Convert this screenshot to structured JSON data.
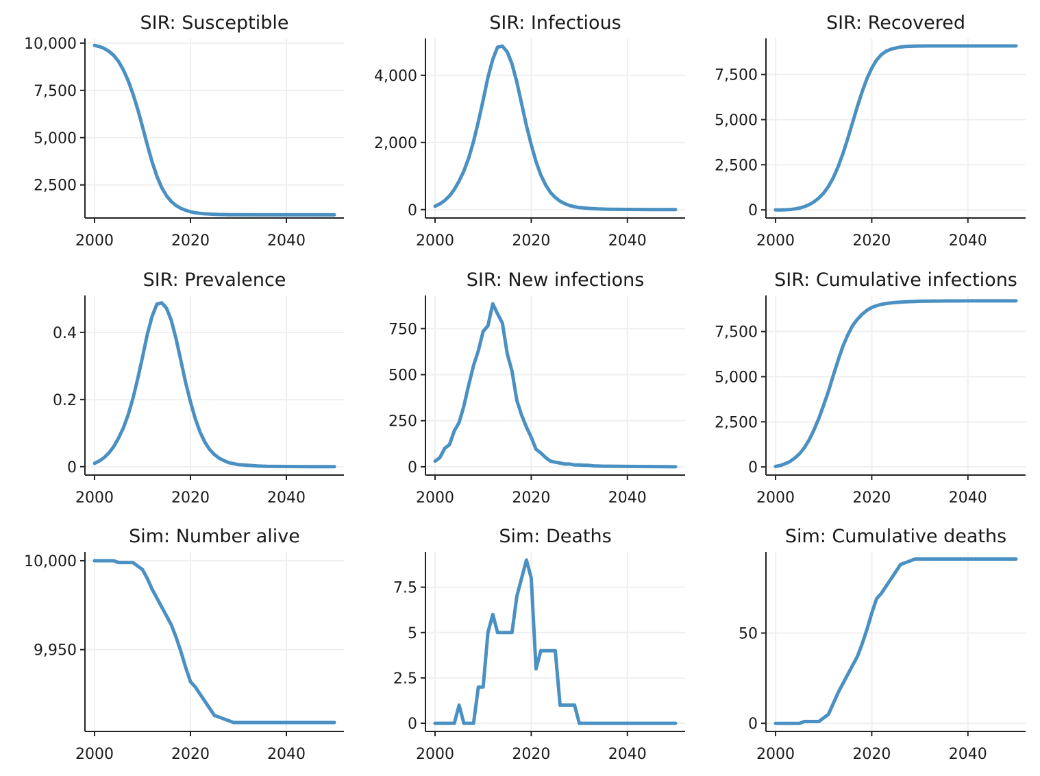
{
  "colors": {
    "series": "#4a90c2",
    "grid": "#efefef",
    "axis": "#222222"
  },
  "chart_data": [
    {
      "type": "line",
      "title": "SIR: Susceptible",
      "xlim": [
        1998,
        2052
      ],
      "ylim": [
        750,
        10250
      ],
      "xticks": [
        2000,
        2020,
        2040
      ],
      "xtick_labels": [
        "2000",
        "2020",
        "2040"
      ],
      "yticks": [
        2500,
        5000,
        7500,
        10000
      ],
      "ytick_labels": [
        "2,500",
        "5,000",
        "7,500",
        "10,000"
      ],
      "grid": true,
      "x": [
        2000,
        2001,
        2002,
        2003,
        2004,
        2005,
        2006,
        2007,
        2008,
        2009,
        2010,
        2011,
        2012,
        2013,
        2014,
        2015,
        2016,
        2017,
        2018,
        2019,
        2020,
        2021,
        2022,
        2023,
        2024,
        2025,
        2026,
        2027,
        2028,
        2029,
        2030,
        2035,
        2040,
        2045,
        2050
      ],
      "y": [
        9880,
        9820,
        9720,
        9570,
        9350,
        9030,
        8590,
        8020,
        7320,
        6500,
        5580,
        4620,
        3720,
        2960,
        2360,
        1930,
        1620,
        1410,
        1260,
        1160,
        1080,
        1030,
        995,
        970,
        955,
        945,
        935,
        930,
        925,
        922,
        920,
        917,
        915,
        915,
        915
      ]
    },
    {
      "type": "line",
      "title": "SIR: Infectious",
      "xlim": [
        1998,
        2052
      ],
      "ylim": [
        -250,
        5100
      ],
      "xticks": [
        2000,
        2020,
        2040
      ],
      "xtick_labels": [
        "2000",
        "2020",
        "2040"
      ],
      "yticks": [
        0,
        2000,
        4000
      ],
      "ytick_labels": [
        "0",
        "2,000",
        "4,000"
      ],
      "grid": true,
      "x": [
        2000,
        2001,
        2002,
        2003,
        2004,
        2005,
        2006,
        2007,
        2008,
        2009,
        2010,
        2011,
        2012,
        2013,
        2014,
        2015,
        2016,
        2017,
        2018,
        2019,
        2020,
        2021,
        2022,
        2023,
        2024,
        2025,
        2026,
        2027,
        2028,
        2029,
        2030,
        2032,
        2034,
        2036,
        2040,
        2045,
        2050
      ],
      "y": [
        100,
        170,
        270,
        410,
        600,
        850,
        1150,
        1540,
        2030,
        2620,
        3260,
        3940,
        4480,
        4840,
        4870,
        4700,
        4340,
        3800,
        3150,
        2500,
        1930,
        1430,
        1030,
        730,
        510,
        360,
        250,
        175,
        120,
        85,
        60,
        35,
        20,
        12,
        5,
        2,
        0
      ]
    },
    {
      "type": "line",
      "title": "SIR: Recovered",
      "xlim": [
        1998,
        2052
      ],
      "ylim": [
        -450,
        9500
      ],
      "xticks": [
        2000,
        2020,
        2040
      ],
      "xtick_labels": [
        "2000",
        "2020",
        "2040"
      ],
      "yticks": [
        0,
        2500,
        5000,
        7500
      ],
      "ytick_labels": [
        "0",
        "2,500",
        "5,000",
        "7,500"
      ],
      "grid": true,
      "x": [
        2000,
        2001,
        2002,
        2003,
        2004,
        2005,
        2006,
        2007,
        2008,
        2009,
        2010,
        2011,
        2012,
        2013,
        2014,
        2015,
        2016,
        2017,
        2018,
        2019,
        2020,
        2021,
        2022,
        2023,
        2024,
        2025,
        2026,
        2027,
        2028,
        2029,
        2030,
        2032,
        2034,
        2036,
        2040,
        2045,
        2050
      ],
      "y": [
        0,
        0,
        5,
        20,
        50,
        100,
        180,
        290,
        450,
        660,
        930,
        1300,
        1780,
        2390,
        3110,
        3940,
        4820,
        5720,
        6550,
        7270,
        7850,
        8300,
        8600,
        8790,
        8900,
        8970,
        9020,
        9050,
        9065,
        9075,
        9080,
        9082,
        9083,
        9083,
        9083,
        9083,
        9083
      ]
    },
    {
      "type": "line",
      "title": "SIR: Prevalence",
      "xlim": [
        1998,
        2052
      ],
      "ylim": [
        -0.025,
        0.51
      ],
      "xticks": [
        2000,
        2020,
        2040
      ],
      "xtick_labels": [
        "2000",
        "2020",
        "2040"
      ],
      "yticks": [
        0,
        0.2,
        0.4
      ],
      "ytick_labels": [
        "0",
        "0.2",
        "0.4"
      ],
      "grid": true,
      "x": [
        2000,
        2001,
        2002,
        2003,
        2004,
        2005,
        2006,
        2007,
        2008,
        2009,
        2010,
        2011,
        2012,
        2013,
        2014,
        2015,
        2016,
        2017,
        2018,
        2019,
        2020,
        2021,
        2022,
        2023,
        2024,
        2025,
        2026,
        2027,
        2028,
        2029,
        2030,
        2032,
        2034,
        2036,
        2040,
        2045,
        2050
      ],
      "y": [
        0.01,
        0.017,
        0.027,
        0.041,
        0.06,
        0.085,
        0.115,
        0.154,
        0.203,
        0.262,
        0.326,
        0.394,
        0.448,
        0.484,
        0.488,
        0.472,
        0.436,
        0.381,
        0.316,
        0.25,
        0.193,
        0.143,
        0.103,
        0.073,
        0.051,
        0.036,
        0.025,
        0.018,
        0.012,
        0.009,
        0.006,
        0.004,
        0.002,
        0.001,
        0.0005,
        0.0002,
        0
      ]
    },
    {
      "type": "line",
      "title": "SIR: New infections",
      "xlim": [
        1998,
        2052
      ],
      "ylim": [
        -45,
        930
      ],
      "xticks": [
        2000,
        2020,
        2040
      ],
      "xtick_labels": [
        "2000",
        "2020",
        "2040"
      ],
      "yticks": [
        0,
        250,
        500,
        750
      ],
      "ytick_labels": [
        "0",
        "250",
        "500",
        "750"
      ],
      "grid": true,
      "x": [
        2000,
        2001,
        2002,
        2003,
        2004,
        2005,
        2006,
        2007,
        2008,
        2009,
        2010,
        2011,
        2012,
        2013,
        2014,
        2015,
        2016,
        2017,
        2018,
        2019,
        2020,
        2021,
        2022,
        2023,
        2024,
        2025,
        2026,
        2027,
        2028,
        2029,
        2030,
        2031,
        2032,
        2033,
        2035,
        2040,
        2045,
        2050
      ],
      "y": [
        30,
        50,
        100,
        120,
        195,
        240,
        330,
        445,
        550,
        630,
        735,
        765,
        885,
        830,
        780,
        615,
        520,
        360,
        280,
        215,
        160,
        95,
        75,
        50,
        30,
        25,
        20,
        15,
        15,
        10,
        10,
        8,
        8,
        5,
        3,
        2,
        1,
        0
      ]
    },
    {
      "type": "line",
      "title": "SIR: Cumulative infections",
      "xlim": [
        1998,
        2052
      ],
      "ylim": [
        -450,
        9500
      ],
      "xticks": [
        2000,
        2020,
        2040
      ],
      "xtick_labels": [
        "2000",
        "2020",
        "2040"
      ],
      "yticks": [
        0,
        2500,
        5000,
        7500
      ],
      "ytick_labels": [
        "0",
        "2,500",
        "5,000",
        "7,500"
      ],
      "grid": true,
      "x": [
        2000,
        2001,
        2002,
        2003,
        2004,
        2005,
        2006,
        2007,
        2008,
        2009,
        2010,
        2011,
        2012,
        2013,
        2014,
        2015,
        2016,
        2017,
        2018,
        2019,
        2020,
        2021,
        2022,
        2023,
        2024,
        2025,
        2026,
        2027,
        2028,
        2029,
        2030,
        2032,
        2034,
        2036,
        2040,
        2045,
        2050
      ],
      "y": [
        30,
        80,
        180,
        300,
        495,
        735,
        1065,
        1510,
        2060,
        2690,
        3425,
        4190,
        5075,
        5905,
        6685,
        7300,
        7820,
        8180,
        8460,
        8675,
        8835,
        8930,
        9005,
        9055,
        9085,
        9110,
        9130,
        9145,
        9160,
        9170,
        9180,
        9188,
        9193,
        9196,
        9200,
        9200,
        9200
      ]
    },
    {
      "type": "line",
      "title": "Sim: Number alive",
      "xlim": [
        1998,
        2052
      ],
      "ylim": [
        9904,
        10005
      ],
      "xticks": [
        2000,
        2020,
        2040
      ],
      "xtick_labels": [
        "2000",
        "2020",
        "2040"
      ],
      "yticks": [
        9950,
        10000
      ],
      "ytick_labels": [
        "9,950",
        "10,000"
      ],
      "grid": true,
      "x": [
        2000,
        2001,
        2002,
        2003,
        2004,
        2005,
        2006,
        2007,
        2008,
        2009,
        2010,
        2011,
        2012,
        2013,
        2014,
        2015,
        2016,
        2017,
        2018,
        2019,
        2020,
        2021,
        2022,
        2023,
        2024,
        2025,
        2026,
        2027,
        2028,
        2029,
        2030,
        2035,
        2040,
        2045,
        2050
      ],
      "y": [
        10000,
        10000,
        10000,
        10000,
        10000,
        9999,
        9999,
        9999,
        9999,
        9997,
        9995,
        9990,
        9984,
        9979,
        9974,
        9969,
        9964,
        9957,
        9949,
        9940,
        9932,
        9929,
        9925,
        9921,
        9917,
        9913,
        9912,
        9911,
        9910,
        9909,
        9909,
        9909,
        9909,
        9909,
        9909
      ]
    },
    {
      "type": "line",
      "title": "Sim: Deaths",
      "xlim": [
        1998,
        2052
      ],
      "ylim": [
        -0.45,
        9.45
      ],
      "xticks": [
        2000,
        2020,
        2040
      ],
      "xtick_labels": [
        "2000",
        "2020",
        "2040"
      ],
      "yticks": [
        0,
        2.5,
        5,
        7.5
      ],
      "ytick_labels": [
        "0",
        "2.5",
        "5",
        "7.5"
      ],
      "grid": true,
      "x": [
        2000,
        2001,
        2002,
        2003,
        2004,
        2005,
        2006,
        2007,
        2008,
        2009,
        2010,
        2011,
        2012,
        2013,
        2014,
        2015,
        2016,
        2017,
        2018,
        2019,
        2020,
        2021,
        2022,
        2023,
        2024,
        2025,
        2026,
        2027,
        2028,
        2029,
        2030,
        2031,
        2035,
        2040,
        2045,
        2050
      ],
      "y": [
        0,
        0,
        0,
        0,
        0,
        1,
        0,
        0,
        0,
        2,
        2,
        5,
        6,
        5,
        5,
        5,
        5,
        7,
        8,
        9,
        8,
        3,
        4,
        4,
        4,
        4,
        1,
        1,
        1,
        1,
        0,
        0,
        0,
        0,
        0,
        0
      ]
    },
    {
      "type": "line",
      "title": "Sim: Cumulative deaths",
      "xlim": [
        1998,
        2052
      ],
      "ylim": [
        -4.5,
        95
      ],
      "xticks": [
        2000,
        2020,
        2040
      ],
      "xtick_labels": [
        "2000",
        "2020",
        "2040"
      ],
      "yticks": [
        0,
        50
      ],
      "ytick_labels": [
        "0",
        "50"
      ],
      "grid": true,
      "x": [
        2000,
        2001,
        2002,
        2003,
        2004,
        2005,
        2006,
        2007,
        2008,
        2009,
        2010,
        2011,
        2012,
        2013,
        2014,
        2015,
        2016,
        2017,
        2018,
        2019,
        2020,
        2021,
        2022,
        2023,
        2024,
        2025,
        2026,
        2027,
        2028,
        2029,
        2030,
        2031,
        2035,
        2040,
        2045,
        2050
      ],
      "y": [
        0,
        0,
        0,
        0,
        0,
        0,
        1,
        1,
        1,
        1,
        3,
        5,
        11,
        17,
        22,
        27,
        32,
        37,
        44,
        52,
        61,
        69,
        72,
        76,
        80,
        84,
        88,
        89,
        90,
        91,
        91,
        91,
        91,
        91,
        91,
        91
      ]
    }
  ]
}
